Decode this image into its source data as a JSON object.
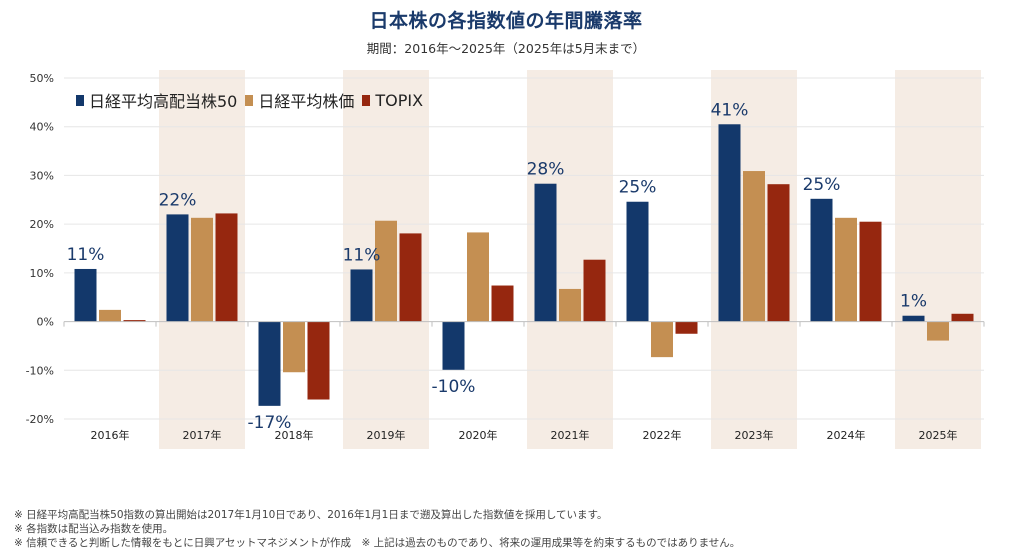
{
  "colors": {
    "title": "#1a3a6b",
    "shade": "#f5ece4",
    "grid": "#e6e6e6",
    "axis": "#bfbfbf",
    "label": "#1a3a6b"
  },
  "chart_data": {
    "type": "bar",
    "title": "日本株の各指数値の年間騰落率",
    "subtitle": "期間：2016年～2025年（2025年は5月末まで）",
    "xlabel": "",
    "ylabel": "",
    "ylim": [
      -20,
      50
    ],
    "yticks": [
      50,
      40,
      30,
      20,
      10,
      0,
      -10,
      -20
    ],
    "ytick_labels": [
      "50%",
      "40%",
      "30%",
      "20%",
      "10%",
      "0%",
      "-10%",
      "-20%"
    ],
    "grid": true,
    "legend_position": "top-left",
    "categories": [
      "2016年",
      "2017年",
      "2018年",
      "2019年",
      "2020年",
      "2021年",
      "2022年",
      "2023年",
      "2024年",
      "2025年"
    ],
    "shaded_categories": [
      false,
      true,
      false,
      true,
      false,
      true,
      false,
      true,
      false,
      true
    ],
    "series": [
      {
        "name": "日経平均高配当株50",
        "color": "#13386b",
        "values": [
          10.8,
          22.0,
          -17.3,
          10.7,
          -9.9,
          28.3,
          24.6,
          40.5,
          25.2,
          1.2
        ],
        "data_labels": [
          "11%",
          "22%",
          "-17%",
          "11%",
          "-10%",
          "28%",
          "25%",
          "41%",
          "25%",
          "1%"
        ]
      },
      {
        "name": "日経平均株価",
        "color": "#c48f52",
        "values": [
          2.4,
          21.3,
          -10.4,
          20.7,
          18.3,
          6.7,
          -7.3,
          30.9,
          21.3,
          -3.9
        ]
      },
      {
        "name": "TOPIX",
        "color": "#96270f",
        "values": [
          0.3,
          22.2,
          -16.0,
          18.1,
          7.4,
          12.7,
          -2.5,
          28.2,
          20.5,
          1.6
        ]
      }
    ]
  },
  "footnotes": [
    "※ 日経平均高配当株50指数の算出開始は2017年1月10日であり、2016年1月1日まで遡及算出した指数値を採用しています。",
    "※ 各指数は配当込み指数を使用。",
    "※ 信頼できると判断した情報をもとに日興アセットマネジメントが作成　※ 上記は過去のものであり、将来の運用成果等を約束するものではありません。"
  ]
}
